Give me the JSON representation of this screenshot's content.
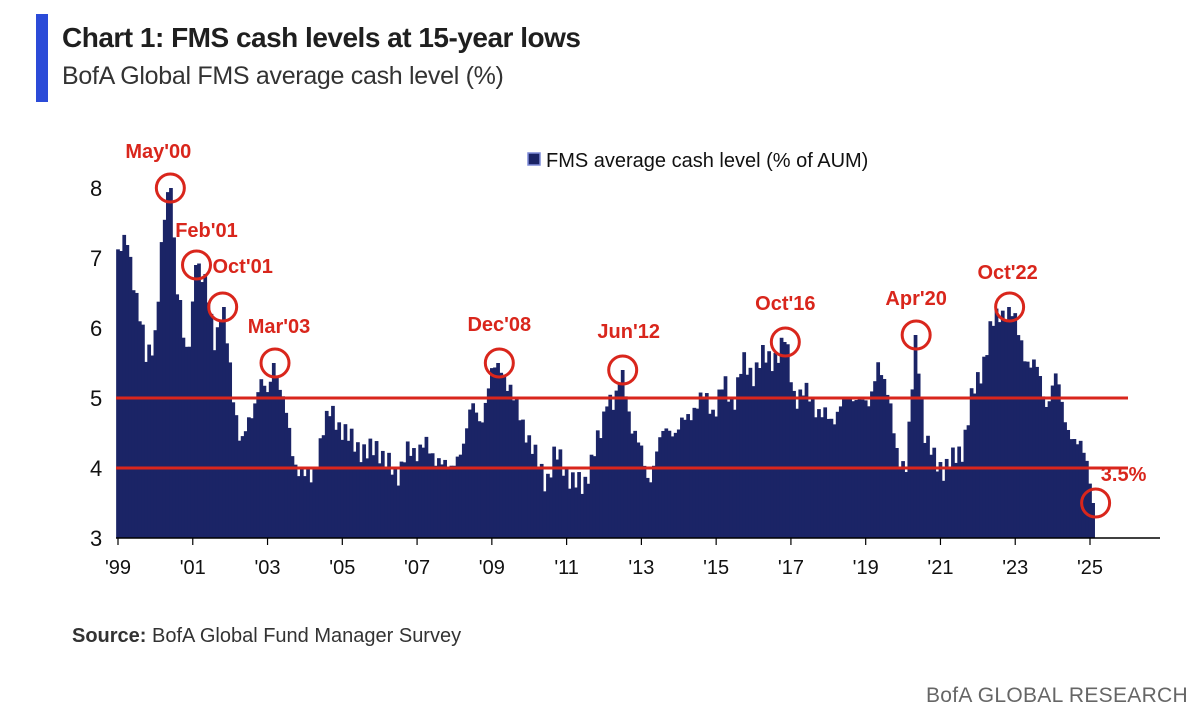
{
  "header": {
    "title": "Chart 1: FMS cash levels at 15-year lows",
    "subtitle": "BofA Global FMS average cash level (%)"
  },
  "footer": {
    "source_label": "Source:",
    "source_text": "BofA Global Fund Manager Survey",
    "brand": "BofA GLOBAL RESEARCH"
  },
  "colors": {
    "bar": "#1b2466",
    "reference_line": "#d9261c",
    "annotation": "#d9261c",
    "accent": "#2b4bd8"
  },
  "chart_data": {
    "type": "bar",
    "title": "",
    "xlabel": "",
    "ylabel": "",
    "ylim": [
      3,
      8.3
    ],
    "xlim": [
      1999.0,
      2026.5
    ],
    "y_ticks": [
      "3",
      "4",
      "5",
      "6",
      "7",
      "8"
    ],
    "x_ticks": [
      {
        "label": "'99",
        "year": 1999
      },
      {
        "label": "'01",
        "year": 2001
      },
      {
        "label": "'03",
        "year": 2003
      },
      {
        "label": "'05",
        "year": 2005
      },
      {
        "label": "'07",
        "year": 2007
      },
      {
        "label": "'09",
        "year": 2009
      },
      {
        "label": "'11",
        "year": 2011
      },
      {
        "label": "'13",
        "year": 2013
      },
      {
        "label": "'15",
        "year": 2015
      },
      {
        "label": "'17",
        "year": 2017
      },
      {
        "label": "'19",
        "year": 2019
      },
      {
        "label": "'21",
        "year": 2021
      },
      {
        "label": "'23",
        "year": 2023
      },
      {
        "label": "'25",
        "year": 2025
      }
    ],
    "legend": {
      "label": "FMS average cash level (% of AUM)",
      "position": "top-center"
    },
    "reference_lines": [
      5.0,
      4.0
    ],
    "series": [
      {
        "name": "FMS average cash level (% of AUM)",
        "points": [
          [
            1999.0,
            7.0
          ],
          [
            1999.25,
            7.3
          ],
          [
            1999.5,
            6.4
          ],
          [
            1999.75,
            5.6
          ],
          [
            2000.0,
            5.9
          ],
          [
            2000.25,
            7.6
          ],
          [
            2000.4,
            8.0
          ],
          [
            2000.6,
            6.5
          ],
          [
            2000.85,
            5.5
          ],
          [
            2001.1,
            6.9
          ],
          [
            2001.4,
            6.5
          ],
          [
            2001.6,
            5.8
          ],
          [
            2001.8,
            6.3
          ],
          [
            2002.1,
            5.0
          ],
          [
            2002.3,
            4.3
          ],
          [
            2002.6,
            4.8
          ],
          [
            2002.8,
            5.3
          ],
          [
            2003.0,
            5.0
          ],
          [
            2003.2,
            5.5
          ],
          [
            2003.45,
            4.9
          ],
          [
            2003.7,
            4.1
          ],
          [
            2004.0,
            3.9
          ],
          [
            2004.2,
            3.8
          ],
          [
            2004.45,
            4.5
          ],
          [
            2004.7,
            4.8
          ],
          [
            2004.95,
            4.6
          ],
          [
            2005.2,
            4.4
          ],
          [
            2005.45,
            4.3
          ],
          [
            2005.7,
            4.2
          ],
          [
            2005.95,
            4.3
          ],
          [
            2006.2,
            4.1
          ],
          [
            2006.45,
            3.8
          ],
          [
            2006.7,
            4.3
          ],
          [
            2006.95,
            4.1
          ],
          [
            2007.2,
            4.5
          ],
          [
            2007.45,
            4.0
          ],
          [
            2007.7,
            4.2
          ],
          [
            2007.95,
            3.9
          ],
          [
            2008.2,
            4.3
          ],
          [
            2008.45,
            4.9
          ],
          [
            2008.7,
            4.6
          ],
          [
            2008.95,
            5.3
          ],
          [
            2009.2,
            5.5
          ],
          [
            2009.45,
            5.2
          ],
          [
            2009.7,
            4.8
          ],
          [
            2009.95,
            4.5
          ],
          [
            2010.2,
            4.1
          ],
          [
            2010.45,
            3.8
          ],
          [
            2010.7,
            4.2
          ],
          [
            2010.95,
            4.0
          ],
          [
            2011.2,
            3.8
          ],
          [
            2011.45,
            3.7
          ],
          [
            2011.7,
            4.2
          ],
          [
            2011.95,
            4.5
          ],
          [
            2012.1,
            5.1
          ],
          [
            2012.3,
            4.9
          ],
          [
            2012.5,
            5.4
          ],
          [
            2012.7,
            4.7
          ],
          [
            2012.95,
            4.3
          ],
          [
            2013.2,
            3.8
          ],
          [
            2013.45,
            4.3
          ],
          [
            2013.7,
            4.6
          ],
          [
            2013.95,
            4.5
          ],
          [
            2014.2,
            4.7
          ],
          [
            2014.45,
            4.9
          ],
          [
            2014.7,
            5.0
          ],
          [
            2014.95,
            4.8
          ],
          [
            2015.2,
            5.2
          ],
          [
            2015.45,
            4.9
          ],
          [
            2015.7,
            5.5
          ],
          [
            2015.95,
            5.3
          ],
          [
            2016.2,
            5.6
          ],
          [
            2016.45,
            5.5
          ],
          [
            2016.7,
            5.7
          ],
          [
            2016.85,
            5.8
          ],
          [
            2017.1,
            5.0
          ],
          [
            2017.35,
            5.1
          ],
          [
            2017.6,
            4.9
          ],
          [
            2017.85,
            4.8
          ],
          [
            2018.1,
            4.6
          ],
          [
            2018.35,
            5.0
          ],
          [
            2018.6,
            4.9
          ],
          [
            2018.85,
            5.1
          ],
          [
            2019.1,
            4.8
          ],
          [
            2019.35,
            5.6
          ],
          [
            2019.6,
            5.0
          ],
          [
            2019.85,
            4.2
          ],
          [
            2020.1,
            4.0
          ],
          [
            2020.35,
            5.9
          ],
          [
            2020.6,
            4.4
          ],
          [
            2020.85,
            4.1
          ],
          [
            2021.1,
            4.0
          ],
          [
            2021.35,
            4.1
          ],
          [
            2021.6,
            4.3
          ],
          [
            2021.85,
            5.0
          ],
          [
            2022.1,
            5.4
          ],
          [
            2022.35,
            6.0
          ],
          [
            2022.6,
            6.2
          ],
          [
            2022.85,
            6.3
          ],
          [
            2023.1,
            5.9
          ],
          [
            2023.35,
            5.5
          ],
          [
            2023.6,
            5.4
          ],
          [
            2023.85,
            4.9
          ],
          [
            2024.1,
            5.3
          ],
          [
            2024.35,
            4.7
          ],
          [
            2024.6,
            4.3
          ],
          [
            2024.85,
            4.3
          ],
          [
            2025.0,
            3.9
          ],
          [
            2025.15,
            3.5
          ]
        ]
      }
    ],
    "annotations": [
      {
        "label": "May'00",
        "x": 2000.4,
        "y": 8.0
      },
      {
        "label": "Feb'01",
        "x": 2001.1,
        "y": 6.9
      },
      {
        "label": "Oct'01",
        "x": 2001.8,
        "y": 6.3
      },
      {
        "label": "Mar'03",
        "x": 2003.2,
        "y": 5.5
      },
      {
        "label": "Dec'08",
        "x": 2009.2,
        "y": 5.5
      },
      {
        "label": "Jun'12",
        "x": 2012.5,
        "y": 5.4
      },
      {
        "label": "Oct'16",
        "x": 2016.85,
        "y": 5.8
      },
      {
        "label": "Apr'20",
        "x": 2020.35,
        "y": 5.9
      },
      {
        "label": "Oct'22",
        "x": 2022.85,
        "y": 6.3
      },
      {
        "label": "3.5%",
        "x": 2025.15,
        "y": 3.5
      }
    ]
  }
}
